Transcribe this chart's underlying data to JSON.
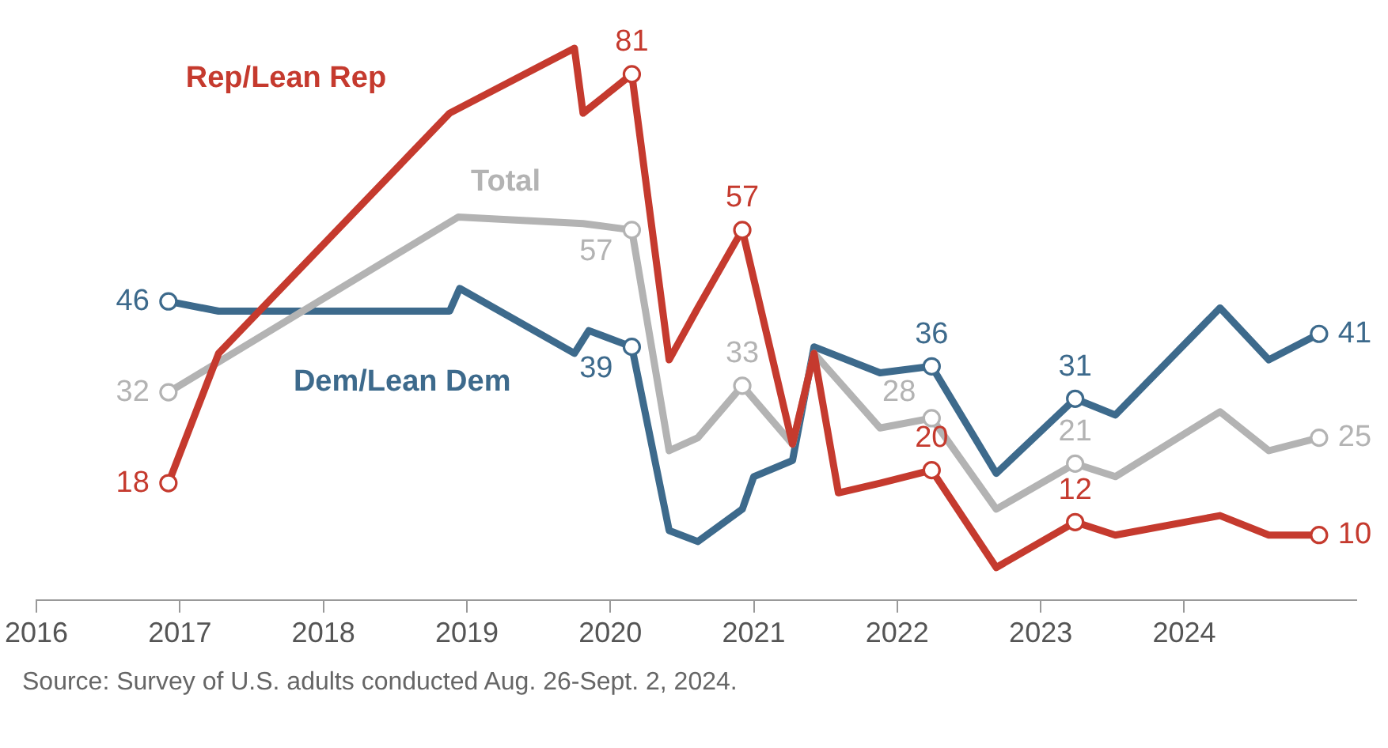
{
  "chart_data": {
    "type": "line",
    "xlim": [
      2016,
      2025.2
    ],
    "xticks": [
      2016,
      2017,
      2018,
      2019,
      2020,
      2021,
      2022,
      2023,
      2024
    ],
    "grid": false,
    "legend": false,
    "line_style": "solid",
    "series": [
      {
        "name": "Rep/Lean Rep",
        "color": "#c53a2e",
        "x": [
          2016.92,
          2017.27,
          2018.88,
          2019.75,
          2019.81,
          2020.15,
          2020.41,
          2020.61,
          2020.92,
          2021.27,
          2021.42,
          2021.59,
          2021.88,
          2022.24,
          2022.69,
          2023.24,
          2023.52,
          2024.25,
          2024.59,
          2024.94
        ],
        "values": [
          18,
          38,
          75,
          85,
          75,
          81,
          37,
          45,
          57,
          24,
          38,
          16.5,
          18,
          20,
          5,
          12,
          10,
          13,
          10,
          10
        ],
        "value_labels": [
          "18",
          null,
          null,
          null,
          null,
          "81",
          null,
          null,
          "57",
          null,
          null,
          null,
          null,
          "20",
          null,
          "12",
          null,
          null,
          null,
          "10"
        ]
      },
      {
        "name": "Total",
        "color": "#b3b3b3",
        "x": [
          2016.92,
          2018.94,
          2019.81,
          2020.15,
          2020.41,
          2020.61,
          2020.92,
          2021.27,
          2021.42,
          2021.88,
          2022.24,
          2022.69,
          2023.24,
          2023.52,
          2024.25,
          2024.59,
          2024.94
        ],
        "values": [
          32,
          59,
          58,
          57,
          23,
          25,
          33,
          24,
          38,
          26.5,
          28,
          14,
          21,
          19,
          29,
          23,
          25
        ],
        "value_labels": [
          "32",
          null,
          null,
          "57",
          null,
          null,
          "33",
          null,
          null,
          null,
          "28",
          null,
          "21",
          null,
          null,
          null,
          "25"
        ]
      },
      {
        "name": "Dem/Lean Dem",
        "color": "#3d6a8c",
        "x": [
          2016.92,
          2017.27,
          2018.88,
          2018.95,
          2019.75,
          2019.85,
          2020.15,
          2020.41,
          2020.61,
          2020.92,
          2021.0,
          2021.27,
          2021.42,
          2021.88,
          2022.24,
          2022.69,
          2023.24,
          2023.52,
          2024.25,
          2024.59,
          2024.94
        ],
        "values": [
          46,
          44.5,
          44.5,
          48,
          38,
          41.5,
          39,
          10.7,
          9,
          14,
          19,
          21.5,
          39,
          35,
          36,
          19.5,
          31,
          28.5,
          45,
          37,
          41
        ],
        "value_labels": [
          "46",
          null,
          null,
          null,
          null,
          null,
          "39",
          null,
          null,
          null,
          null,
          null,
          null,
          null,
          "36",
          null,
          "31",
          null,
          null,
          null,
          "41"
        ]
      }
    ],
    "annotations": [
      "Source: Survey of U.S. adults conducted Aug. 26-Sept. 2, 2024."
    ]
  }
}
